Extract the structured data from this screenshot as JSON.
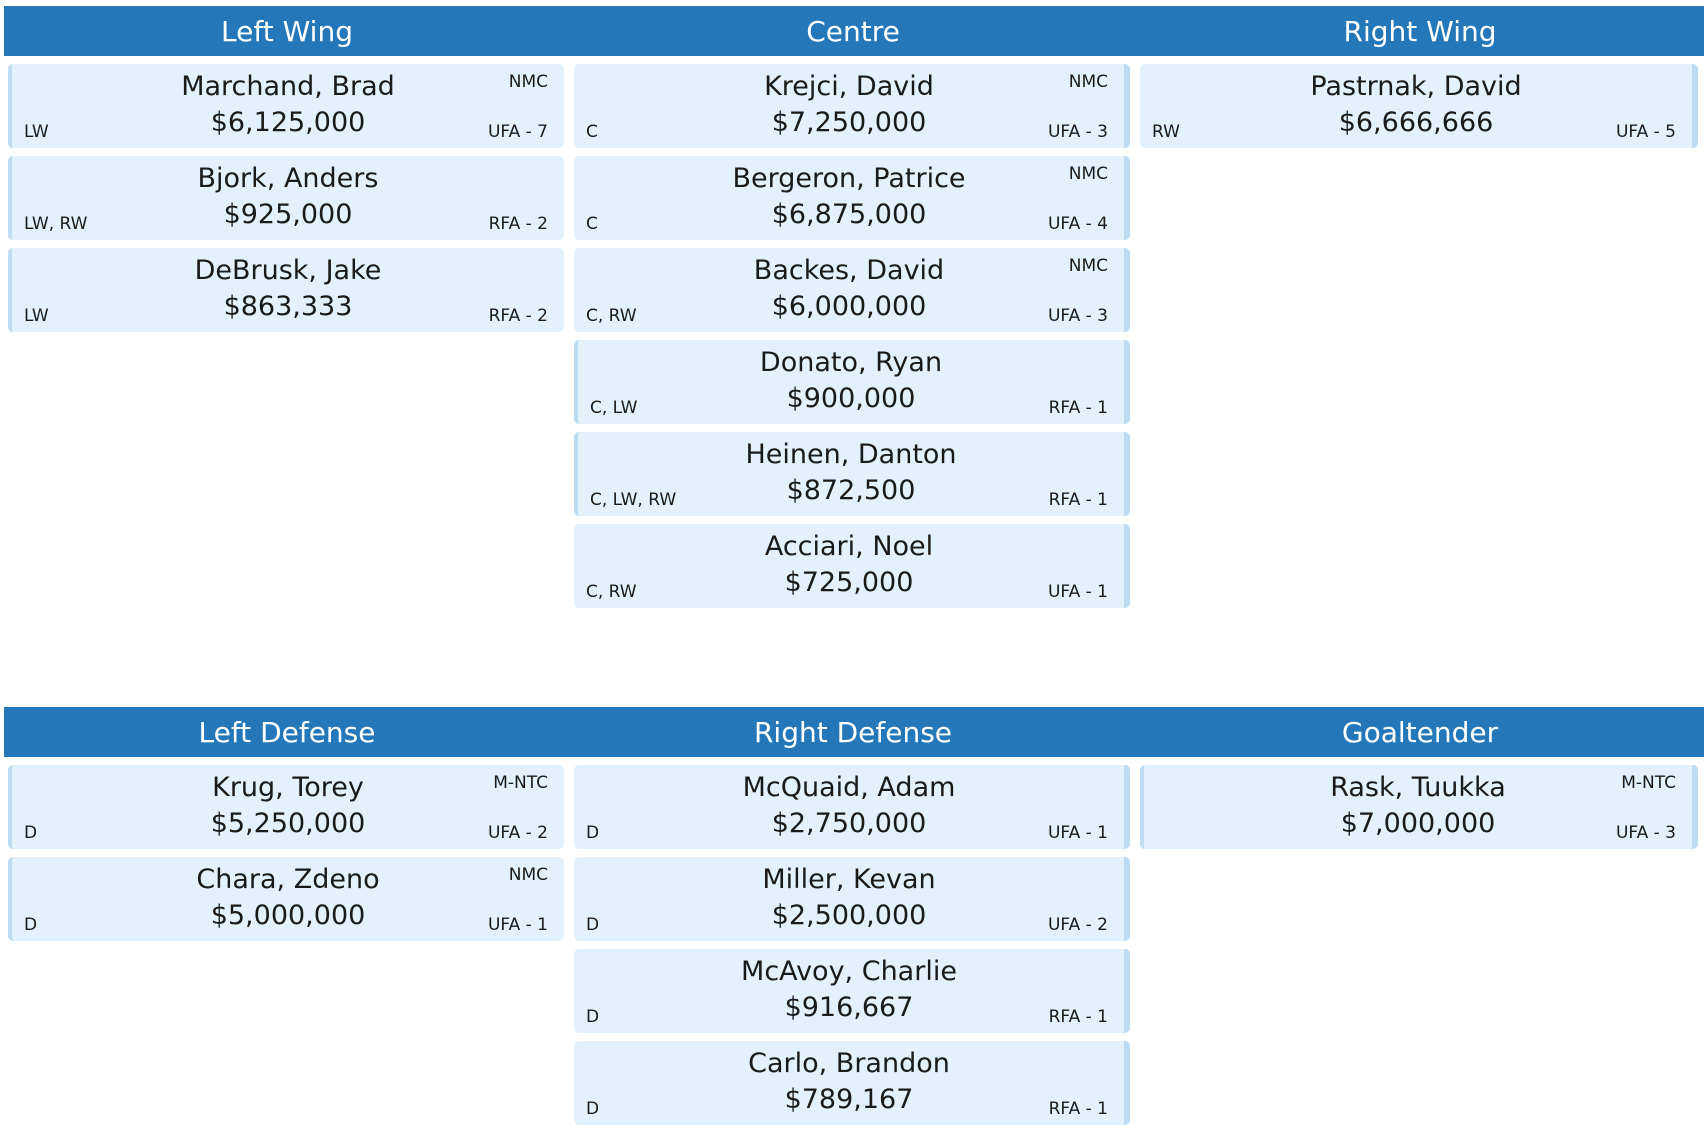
{
  "forwards": {
    "headers": [
      "Left Wing",
      "Centre",
      "Right Wing"
    ],
    "left_wing": [
      {
        "name": "Marchand, Brad",
        "salary": "$6,125,000",
        "clause": "NMC",
        "pos": "LW",
        "contract": "UFA - 7"
      },
      {
        "name": "Bjork, Anders",
        "salary": "$925,000",
        "clause": "",
        "pos": "LW, RW",
        "contract": "RFA - 2"
      },
      {
        "name": "DeBrusk, Jake",
        "salary": "$863,333",
        "clause": "",
        "pos": "LW",
        "contract": "RFA - 2"
      }
    ],
    "centre": [
      {
        "name": "Krejci, David",
        "salary": "$7,250,000",
        "clause": "NMC",
        "pos": "C",
        "contract": "UFA - 3"
      },
      {
        "name": "Bergeron, Patrice",
        "salary": "$6,875,000",
        "clause": "NMC",
        "pos": "C",
        "contract": "UFA - 4"
      },
      {
        "name": "Backes, David",
        "salary": "$6,000,000",
        "clause": "NMC",
        "pos": "C, RW",
        "contract": "UFA - 3"
      },
      {
        "name": "Donato, Ryan",
        "salary": "$900,000",
        "clause": "",
        "pos": "C, LW",
        "contract": "RFA - 1"
      },
      {
        "name": "Heinen, Danton",
        "salary": "$872,500",
        "clause": "",
        "pos": "C, LW, RW",
        "contract": "RFA - 1"
      },
      {
        "name": "Acciari, Noel",
        "salary": "$725,000",
        "clause": "",
        "pos": "C, RW",
        "contract": "UFA - 1"
      }
    ],
    "right_wing": [
      {
        "name": "Pastrnak, David",
        "salary": "$6,666,666",
        "clause": "",
        "pos": "RW",
        "contract": "UFA - 5"
      }
    ]
  },
  "defense": {
    "headers": [
      "Left Defense",
      "Right Defense",
      "Goaltender"
    ],
    "left_defense": [
      {
        "name": "Krug, Torey",
        "salary": "$5,250,000",
        "clause": "M-NTC",
        "pos": "D",
        "contract": "UFA - 2"
      },
      {
        "name": "Chara, Zdeno",
        "salary": "$5,000,000",
        "clause": "NMC",
        "pos": "D",
        "contract": "UFA - 1"
      }
    ],
    "right_defense": [
      {
        "name": "McQuaid, Adam",
        "salary": "$2,750,000",
        "clause": "",
        "pos": "D",
        "contract": "UFA - 1"
      },
      {
        "name": "Miller, Kevan",
        "salary": "$2,500,000",
        "clause": "",
        "pos": "D",
        "contract": "UFA - 2"
      },
      {
        "name": "McAvoy, Charlie",
        "salary": "$916,667",
        "clause": "",
        "pos": "D",
        "contract": "RFA - 1"
      },
      {
        "name": "Carlo, Brandon",
        "salary": "$789,167",
        "clause": "",
        "pos": "D",
        "contract": "RFA - 1"
      }
    ],
    "goaltender": [
      {
        "name": "Rask, Tuukka",
        "salary": "$7,000,000",
        "clause": "M-NTC",
        "pos": "",
        "contract": "UFA - 3"
      }
    ]
  },
  "colors": {
    "header_bg": "#2478b9",
    "card_bg": "#e3f1fc",
    "card_accent": "#bcdcf4"
  }
}
